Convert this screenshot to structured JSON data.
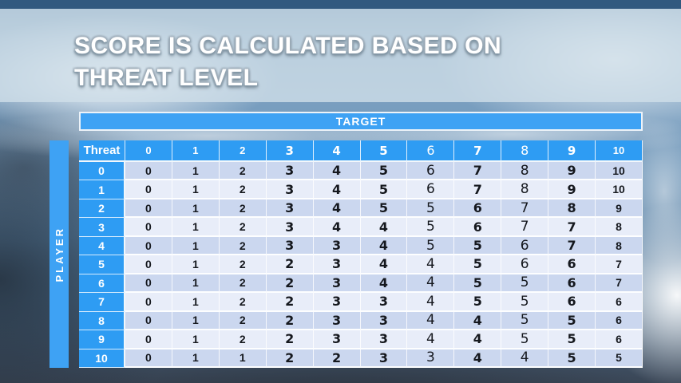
{
  "title": {
    "text": "SCORE IS CALCULATED BASED ON THREAT LEVEL"
  },
  "chart_data": {
    "type": "table",
    "col_group_label": "TARGET",
    "row_group_label": "PLAYER",
    "corner_label": "Threat",
    "columns": [
      "0",
      "1",
      "2",
      "3",
      "4",
      "5",
      "6",
      "7",
      "8",
      "9",
      "10"
    ],
    "rows": [
      {
        "label": "0",
        "values": [
          "0",
          "1",
          "2",
          "3",
          "4",
          "5",
          "6",
          "7",
          "8",
          "9",
          "10"
        ]
      },
      {
        "label": "1",
        "values": [
          "0",
          "1",
          "2",
          "3",
          "4",
          "5",
          "6",
          "7",
          "8",
          "9",
          "10"
        ]
      },
      {
        "label": "2",
        "values": [
          "0",
          "1",
          "2",
          "3",
          "4",
          "5",
          "5",
          "6",
          "7",
          "8",
          "9"
        ]
      },
      {
        "label": "3",
        "values": [
          "0",
          "1",
          "2",
          "3",
          "4",
          "4",
          "5",
          "6",
          "7",
          "7",
          "8"
        ]
      },
      {
        "label": "4",
        "values": [
          "0",
          "1",
          "2",
          "3",
          "3",
          "4",
          "5",
          "5",
          "6",
          "7",
          "8"
        ]
      },
      {
        "label": "5",
        "values": [
          "0",
          "1",
          "2",
          "2",
          "3",
          "4",
          "4",
          "5",
          "6",
          "6",
          "7"
        ]
      },
      {
        "label": "6",
        "values": [
          "0",
          "1",
          "2",
          "2",
          "3",
          "4",
          "4",
          "5",
          "5",
          "6",
          "7"
        ]
      },
      {
        "label": "7",
        "values": [
          "0",
          "1",
          "2",
          "2",
          "3",
          "3",
          "4",
          "5",
          "5",
          "6",
          "6"
        ]
      },
      {
        "label": "8",
        "values": [
          "0",
          "1",
          "2",
          "2",
          "3",
          "3",
          "4",
          "4",
          "5",
          "5",
          "6"
        ]
      },
      {
        "label": "9",
        "values": [
          "0",
          "1",
          "2",
          "2",
          "3",
          "3",
          "4",
          "4",
          "5",
          "5",
          "6"
        ]
      },
      {
        "label": "10",
        "values": [
          "0",
          "1",
          "1",
          "2",
          "2",
          "3",
          "3",
          "4",
          "4",
          "5",
          "5"
        ]
      }
    ]
  },
  "colors": {
    "accent_blue": "#3EA2F4",
    "header_blue": "#2E9CF3",
    "row_shade_dark": "#CBD7EF",
    "row_shade_light": "#E8EDF9",
    "top_strip": "#31597F",
    "body_text": "#15181E"
  }
}
